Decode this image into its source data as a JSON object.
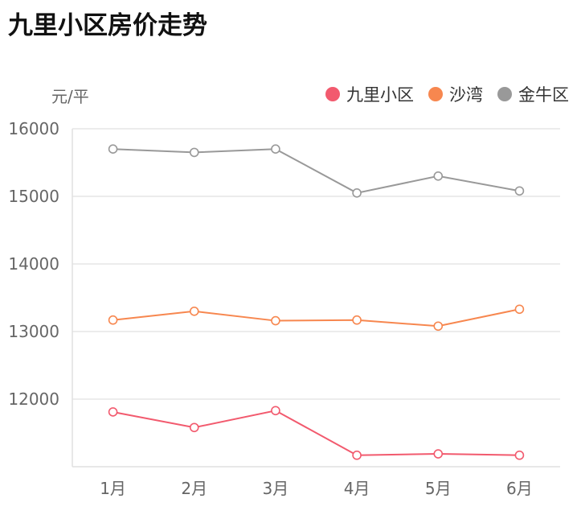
{
  "chart_data": {
    "type": "line",
    "title": "九里小区房价走势",
    "ylabel": "元/平",
    "categories": [
      "1月",
      "2月",
      "3月",
      "4月",
      "5月",
      "6月"
    ],
    "ylim": [
      11000,
      16000
    ],
    "yticks": [
      12000,
      13000,
      14000,
      15000,
      16000
    ],
    "grid": true,
    "legend_position": "top-right",
    "series": [
      {
        "name": "九里小区",
        "color": "#f25a6e",
        "values": [
          11810,
          11580,
          11830,
          11170,
          11190,
          11170
        ]
      },
      {
        "name": "沙湾",
        "color": "#f7874f",
        "values": [
          13170,
          13300,
          13160,
          13170,
          13080,
          13330
        ]
      },
      {
        "name": "金牛区",
        "color": "#999999",
        "values": [
          15700,
          15650,
          15700,
          15050,
          15300,
          15080
        ]
      }
    ]
  }
}
